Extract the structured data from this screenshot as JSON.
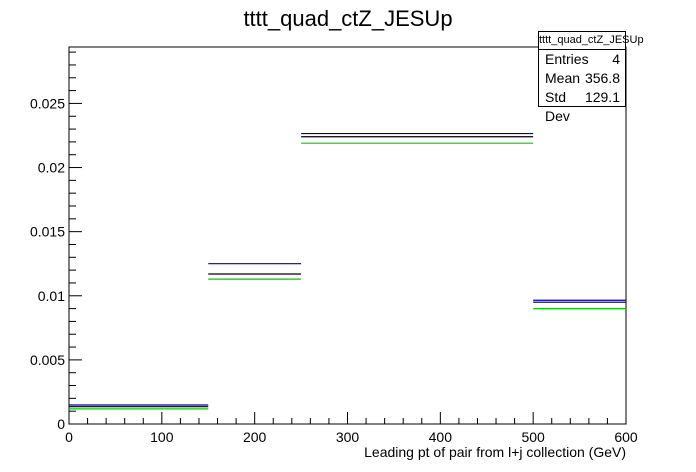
{
  "chart_data": {
    "type": "histogram",
    "title": "tttt_quad_ctZ_JESUp",
    "xlabel": "Leading pt of pair from l+j collection (GeV)",
    "ylabel": "",
    "xlim": [
      0,
      600
    ],
    "ylim": [
      0,
      0.0294
    ],
    "x_ticks": [
      "0",
      "100",
      "200",
      "300",
      "400",
      "500",
      "600"
    ],
    "y_ticks": [
      "0",
      "0.005",
      "0.01",
      "0.015",
      "0.02",
      "0.025"
    ],
    "bins": [
      {
        "low": 0,
        "high": 150
      },
      {
        "low": 150,
        "high": 250
      },
      {
        "low": 250,
        "high": 500
      },
      {
        "low": 500,
        "high": 600
      }
    ],
    "series": [
      {
        "color": "#0000aa",
        "values": [
          0.00148,
          0.0125,
          0.02265,
          0.00965
        ]
      },
      {
        "color": "#000000",
        "values": [
          0.00135,
          0.0117,
          0.0224,
          0.0095
        ]
      },
      {
        "color": "#00cc00",
        "values": [
          0.00118,
          0.0113,
          0.0219,
          0.009
        ]
      }
    ],
    "legend": "none",
    "grid": false
  },
  "stats_box": {
    "title": "tttt_quad_ctZ_JESUp",
    "rows": [
      {
        "label": "Entries",
        "value": "4"
      },
      {
        "label": "Mean",
        "value": "356.8"
      },
      {
        "label": "Std Dev",
        "value": "129.1"
      }
    ]
  }
}
